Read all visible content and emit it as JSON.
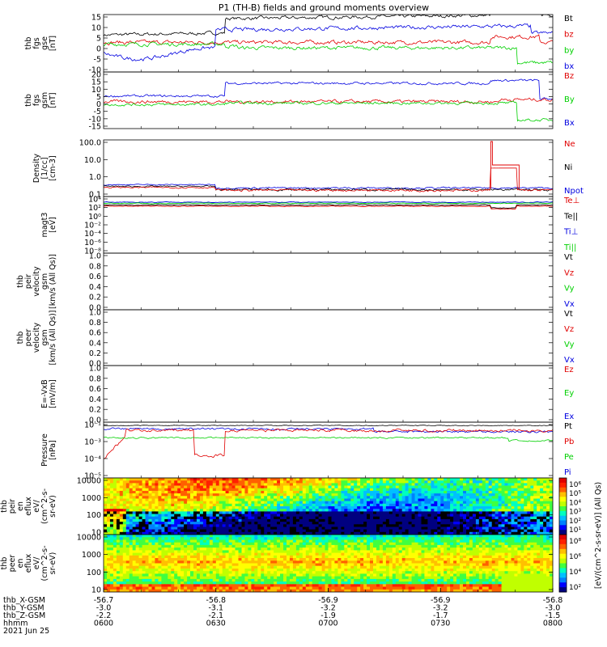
{
  "title": "P1 (TH-B) fields and ground moments overview",
  "colors": {
    "black": "#000000",
    "red": "#e00000",
    "green": "#00d000",
    "blue": "#0000e0"
  },
  "chart_data": [
    {
      "type": "line",
      "id": "fgs-gse",
      "ylabel": [
        "thb",
        "fgs",
        "gse",
        "[nT]"
      ],
      "yticks": [
        "15",
        "10",
        "5",
        "0",
        "-5",
        "-10"
      ],
      "ylim": [
        -10,
        15
      ],
      "legend": [
        {
          "name": "Bt",
          "color": "black"
        },
        {
          "name": "bz",
          "color": "red"
        },
        {
          "name": "by",
          "color": "green"
        },
        {
          "name": "bx",
          "color": "blue"
        }
      ]
    },
    {
      "type": "line",
      "id": "fgs-gsm",
      "ylabel": [
        "thb",
        "fgs",
        "gsm",
        "[nT]"
      ],
      "yticks": [
        "20",
        "15",
        "10",
        "5",
        "0",
        "-5",
        "-10",
        "-15"
      ],
      "ylim": [
        -15,
        20
      ],
      "legend": [
        {
          "name": "Bz",
          "color": "red"
        },
        {
          "name": "By",
          "color": "green"
        },
        {
          "name": "Bx",
          "color": "blue"
        }
      ]
    },
    {
      "type": "line",
      "id": "density",
      "ylabel": [
        "Density",
        "[1/cc]",
        "[cm-3]"
      ],
      "yticks": [
        "100.0",
        "10.0",
        "1.0",
        "0.1"
      ],
      "ylim": [
        0.1,
        100
      ],
      "log": true,
      "legend": [
        {
          "name": "Ne",
          "color": "red"
        },
        {
          "name": "Ni",
          "color": "black"
        },
        {
          "name": "Npot",
          "color": "blue"
        }
      ]
    },
    {
      "type": "line",
      "id": "temperature",
      "ylabel": [
        "magt3",
        "[eV]"
      ],
      "yticks": [
        "10⁴",
        "10²",
        "10⁰",
        "10⁻²",
        "10⁻⁴",
        "10⁻⁶",
        "10⁻⁸"
      ],
      "legend": [
        {
          "name": "Te⊥",
          "color": "red"
        },
        {
          "name": "Te||",
          "color": "black"
        },
        {
          "name": "Ti⊥",
          "color": "blue"
        },
        {
          "name": "Ti||",
          "color": "green"
        }
      ]
    },
    {
      "type": "line",
      "id": "peir-velocity",
      "ylabel": [
        "thb",
        "peir",
        "velocity",
        "gsm",
        "[km/s (All Qs)]"
      ],
      "yticks": [
        "1.0",
        "0.8",
        "0.6",
        "0.4",
        "0.2",
        "0.0"
      ],
      "ylim": [
        0,
        1
      ],
      "legend": [
        {
          "name": "Vt",
          "color": "black"
        },
        {
          "name": "Vz",
          "color": "red"
        },
        {
          "name": "Vy",
          "color": "green"
        },
        {
          "name": "Vx",
          "color": "blue"
        }
      ]
    },
    {
      "type": "line",
      "id": "peer-velocity",
      "ylabel": [
        "thb",
        "peer",
        "velocity",
        "gsm",
        "[km/s (All Qs)]"
      ],
      "yticks": [
        "1.0",
        "0.8",
        "0.6",
        "0.4",
        "0.2",
        "0.0"
      ],
      "ylim": [
        0,
        1
      ],
      "legend": [
        {
          "name": "Vt",
          "color": "black"
        },
        {
          "name": "Vz",
          "color": "red"
        },
        {
          "name": "Vy",
          "color": "green"
        },
        {
          "name": "Vx",
          "color": "blue"
        }
      ]
    },
    {
      "type": "line",
      "id": "efield",
      "ylabel": [
        "E=-VxB",
        "[mV/m]"
      ],
      "yticks": [
        "1.0",
        "0.8",
        "0.6",
        "0.4",
        "0.2",
        "0.0"
      ],
      "ylim": [
        0,
        1
      ],
      "legend": [
        {
          "name": "Ez",
          "color": "red"
        },
        {
          "name": "Ey",
          "color": "green"
        },
        {
          "name": "Ex",
          "color": "blue"
        }
      ]
    },
    {
      "type": "line",
      "id": "pressure",
      "ylabel": [
        "Pressure",
        "[nPa]"
      ],
      "yticks": [
        "10⁻¹",
        "10⁻³",
        "10⁻⁴",
        "10⁻⁵"
      ],
      "legend": [
        {
          "name": "Pt",
          "color": "black"
        },
        {
          "name": "Pb",
          "color": "red"
        },
        {
          "name": "Pe",
          "color": "green"
        },
        {
          "name": "Pi",
          "color": "blue"
        }
      ]
    },
    {
      "type": "heatmap",
      "id": "peir-eflux",
      "ylabel": [
        "thb",
        "peir",
        "en",
        "eflux",
        "eV/",
        "(cm^2-s-",
        "sr-eV)"
      ],
      "yticks": [
        "10000",
        "1000",
        "100",
        "10"
      ],
      "ylim": [
        10,
        10000
      ],
      "log": true,
      "colorbar": [
        "10⁶",
        "10⁵",
        "10⁴",
        "10³",
        "10²",
        "10¹"
      ]
    },
    {
      "type": "heatmap",
      "id": "peer-eflux",
      "ylabel": [
        "thb",
        "peer",
        "en",
        "eflux",
        "eV/",
        "(cm^2-s-",
        "sr-eV)"
      ],
      "yticks": [
        "10000",
        "1000",
        "100",
        "10"
      ],
      "ylim": [
        10,
        10000
      ],
      "log": true,
      "colorbar": [
        "10⁸",
        "10⁶",
        "10⁴",
        "10²"
      ]
    }
  ],
  "colorbar_label": "[eV/(cm^2-s-sr-eV)] (All Qs)",
  "x_axis": {
    "ticks": [
      "0600",
      "0630",
      "0700",
      "0730",
      "0800"
    ],
    "rows": [
      {
        "label": "thb_X-GSM",
        "values": [
          "-56.7",
          "-56.8",
          "-56.9",
          "-56.9",
          "-56.8"
        ]
      },
      {
        "label": "thb_Y-GSM",
        "values": [
          "-3.0",
          "-3.1",
          "-3.2",
          "-3.2",
          "-3.0"
        ]
      },
      {
        "label": "thb_Z-GSM",
        "values": [
          "-2.2",
          "-2.1",
          "-1.9",
          "-1.7",
          "-1.5"
        ]
      },
      {
        "label": "hhmm",
        "values": [
          "0600",
          "0630",
          "0700",
          "0730",
          "0800"
        ]
      }
    ],
    "date": "2021 Jun 25"
  }
}
